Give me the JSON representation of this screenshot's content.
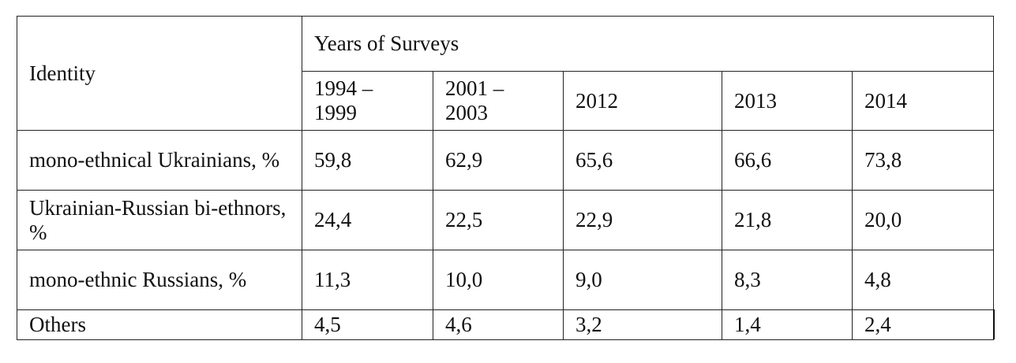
{
  "table": {
    "identity_header": "Identity",
    "years_header": "Years of Surveys",
    "periods": [
      {
        "line1": "1994 –",
        "line2": "1999"
      },
      {
        "line1": "2001 –",
        "line2": "2003"
      },
      {
        "line1": "2012",
        "line2": ""
      },
      {
        "line1": "2013",
        "line2": ""
      },
      {
        "line1": "2014",
        "line2": ""
      }
    ],
    "rows": [
      {
        "label": "mono-ethnical Ukrainians, %",
        "values": [
          "59,8",
          "62,9",
          "65,6",
          "66,6",
          "73,8"
        ]
      },
      {
        "label": "Ukrainian-Russian bi-ethnors, %",
        "values": [
          "24,4",
          "22,5",
          "22,9",
          "21,8",
          "20,0"
        ]
      },
      {
        "label": "mono-ethnic Russians, %",
        "values": [
          "11,3",
          "10,0",
          "9,0",
          "8,3",
          "4,8"
        ]
      },
      {
        "label": "Others",
        "values": [
          "4,5",
          "4,6",
          "3,2",
          "1,4",
          "2,4"
        ]
      }
    ]
  }
}
